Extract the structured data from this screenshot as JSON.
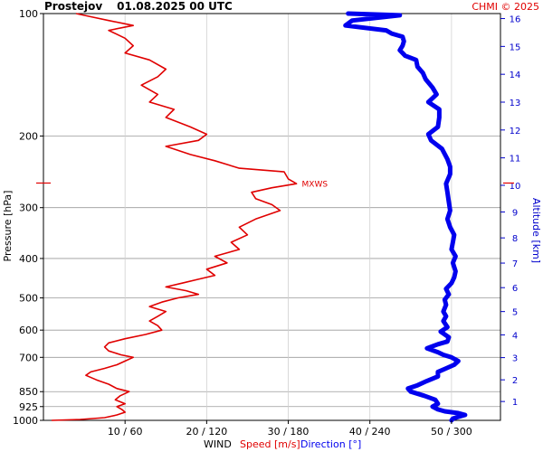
{
  "header": {
    "station": "Prostejov",
    "datetime": "01.08.2025 00 UTC",
    "credit": "CHMI © 2025"
  },
  "chart_data": {
    "type": "line",
    "title": "Prostejov    01.08.2025 00 UTC",
    "ylabel": "Pressure [hPa]",
    "y2label": "Altitude [km]",
    "xlabel": {
      "wind": "WIND",
      "speed": "Speed [m/s]",
      "direction": "Direction [°]"
    },
    "y_scale": "log",
    "ylim_hpa": [
      1000,
      100
    ],
    "pressure_ticks": [
      100,
      200,
      300,
      400,
      500,
      600,
      700,
      850,
      925,
      1000
    ],
    "pressure_tick_labels": [
      "100",
      "200",
      "300",
      "400",
      "500",
      "600",
      "700",
      "850",
      "925",
      "1000"
    ],
    "altitude_ticks_km": [
      1,
      2,
      3,
      4,
      5,
      6,
      7,
      8,
      9,
      10,
      11,
      12,
      13,
      14,
      15,
      16
    ],
    "altitude_tick_labels": [
      "1",
      "2",
      "3",
      "4",
      "5",
      "6",
      "7",
      "8",
      "9",
      "10",
      "11",
      "12",
      "13",
      "14",
      "15",
      "16"
    ],
    "x_ticks": [
      {
        "speed": 10,
        "direction": 60,
        "label": "10 / 60"
      },
      {
        "speed": 20,
        "direction": 120,
        "label": "20 / 120"
      },
      {
        "speed": 30,
        "direction": 180,
        "label": "30 / 180"
      },
      {
        "speed": 40,
        "direction": 240,
        "label": "40 / 240"
      },
      {
        "speed": 50,
        "direction": 300,
        "label": "50 / 300"
      }
    ],
    "xlim_speed": [
      0,
      56
    ],
    "grid": true,
    "annotations": [
      {
        "text": "MXWS",
        "pressure": 261,
        "speed": 31
      }
    ],
    "colors": {
      "speed": "#e00000",
      "direction": "#0000ee",
      "altitude_axis": "#0000cc",
      "credit": "#e00000",
      "grid": "#c8c8c8"
    },
    "series": [
      {
        "name": "Speed [m/s]",
        "units": "m/s",
        "points": [
          [
            1000,
            1.0
          ],
          [
            995,
            4.5
          ],
          [
            985,
            7.5
          ],
          [
            970,
            9.0
          ],
          [
            955,
            10.0
          ],
          [
            940,
            9.6
          ],
          [
            925,
            9.0
          ],
          [
            910,
            10.0
          ],
          [
            890,
            8.8
          ],
          [
            870,
            9.4
          ],
          [
            850,
            10.5
          ],
          [
            835,
            9.0
          ],
          [
            815,
            8.0
          ],
          [
            795,
            6.5
          ],
          [
            775,
            5.2
          ],
          [
            760,
            5.8
          ],
          [
            745,
            7.5
          ],
          [
            730,
            9.0
          ],
          [
            715,
            10.0
          ],
          [
            700,
            11.0
          ],
          [
            690,
            9.5
          ],
          [
            675,
            8.0
          ],
          [
            660,
            7.5
          ],
          [
            645,
            8.0
          ],
          [
            630,
            10.0
          ],
          [
            615,
            12.5
          ],
          [
            600,
            14.5
          ],
          [
            585,
            14.0
          ],
          [
            570,
            13.0
          ],
          [
            555,
            14.0
          ],
          [
            540,
            15.0
          ],
          [
            525,
            13.0
          ],
          [
            512,
            14.5
          ],
          [
            500,
            16.5
          ],
          [
            490,
            19.0
          ],
          [
            480,
            17.5
          ],
          [
            470,
            15.0
          ],
          [
            460,
            17.0
          ],
          [
            450,
            19.0
          ],
          [
            440,
            21.0
          ],
          [
            425,
            20.0
          ],
          [
            410,
            22.5
          ],
          [
            395,
            21.0
          ],
          [
            380,
            24.0
          ],
          [
            365,
            23.0
          ],
          [
            350,
            25.0
          ],
          [
            335,
            24.0
          ],
          [
            320,
            26.0
          ],
          [
            305,
            29.0
          ],
          [
            295,
            28.0
          ],
          [
            285,
            26.0
          ],
          [
            275,
            25.5
          ],
          [
            268,
            28.0
          ],
          [
            262,
            31.0
          ],
          [
            255,
            30.0
          ],
          [
            245,
            29.5
          ],
          [
            240,
            24.0
          ],
          [
            230,
            21.0
          ],
          [
            222,
            18.0
          ],
          [
            212,
            15.0
          ],
          [
            205,
            19.0
          ],
          [
            198,
            20.0
          ],
          [
            190,
            18.0
          ],
          [
            180,
            15.0
          ],
          [
            172,
            16.0
          ],
          [
            165,
            13.0
          ],
          [
            158,
            14.0
          ],
          [
            150,
            12.0
          ],
          [
            143,
            14.0
          ],
          [
            137,
            15.0
          ],
          [
            130,
            13.0
          ],
          [
            125,
            10.0
          ],
          [
            120,
            11.0
          ],
          [
            115,
            10.0
          ],
          [
            110,
            8.0
          ],
          [
            107,
            11.0
          ],
          [
            104,
            8.0
          ],
          [
            102,
            6.0
          ],
          [
            100,
            4.0
          ]
        ]
      },
      {
        "name": "Direction [°]",
        "units": "deg",
        "points": [
          [
            1000,
            300
          ],
          [
            990,
            301
          ],
          [
            980,
            305
          ],
          [
            970,
            310
          ],
          [
            960,
            305
          ],
          [
            950,
            295
          ],
          [
            940,
            290
          ],
          [
            925,
            286
          ],
          [
            910,
            290
          ],
          [
            890,
            288
          ],
          [
            870,
            280
          ],
          [
            850,
            270
          ],
          [
            835,
            268
          ],
          [
            820,
            275
          ],
          [
            800,
            282
          ],
          [
            780,
            290
          ],
          [
            760,
            290
          ],
          [
            745,
            296
          ],
          [
            730,
            302
          ],
          [
            715,
            305
          ],
          [
            700,
            300
          ],
          [
            690,
            294
          ],
          [
            680,
            290
          ],
          [
            665,
            282
          ],
          [
            650,
            290
          ],
          [
            640,
            297
          ],
          [
            625,
            298
          ],
          [
            605,
            292
          ],
          [
            590,
            297
          ],
          [
            570,
            294
          ],
          [
            555,
            296
          ],
          [
            540,
            294
          ],
          [
            520,
            296
          ],
          [
            505,
            295
          ],
          [
            490,
            298
          ],
          [
            475,
            296
          ],
          [
            460,
            300
          ],
          [
            445,
            302
          ],
          [
            430,
            303
          ],
          [
            410,
            301
          ],
          [
            395,
            303
          ],
          [
            380,
            300
          ],
          [
            365,
            301
          ],
          [
            350,
            302
          ],
          [
            335,
            299
          ],
          [
            320,
            297
          ],
          [
            305,
            299
          ],
          [
            290,
            298
          ],
          [
            275,
            297
          ],
          [
            262,
            296
          ],
          [
            248,
            299
          ],
          [
            238,
            299
          ],
          [
            228,
            297
          ],
          [
            215,
            293
          ],
          [
            205,
            285
          ],
          [
            198,
            283
          ],
          [
            190,
            290
          ],
          [
            180,
            291
          ],
          [
            172,
            291
          ],
          [
            165,
            283
          ],
          [
            158,
            289
          ],
          [
            152,
            286
          ],
          [
            145,
            281
          ],
          [
            140,
            279
          ],
          [
            135,
            275
          ],
          [
            130,
            274
          ],
          [
            127,
            266
          ],
          [
            123,
            262
          ],
          [
            120,
            264
          ],
          [
            117,
            265
          ],
          [
            114,
            264
          ],
          [
            112,
            256
          ],
          [
            110,
            252
          ],
          [
            107,
            222
          ],
          [
            104,
            227
          ],
          [
            102,
            250
          ],
          [
            101,
            262
          ],
          [
            100,
            224
          ]
        ]
      }
    ]
  }
}
